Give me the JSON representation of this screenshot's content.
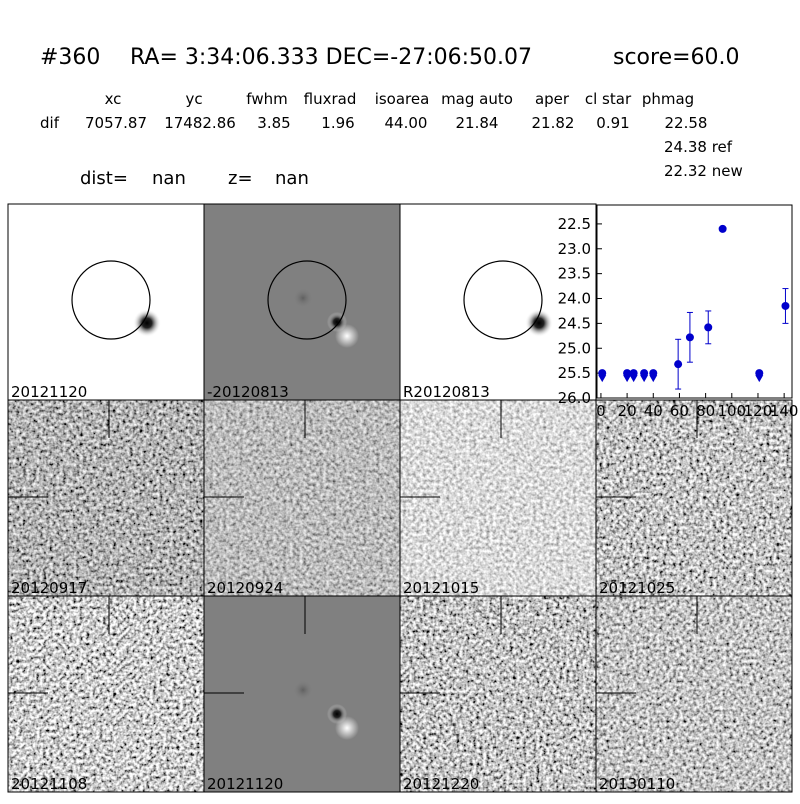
{
  "header": {
    "id": "#360",
    "coords": "RA= 3:34:06.333 DEC=-27:06:50.07",
    "score": "score=60.0"
  },
  "table": {
    "columns": [
      "xc",
      "yc",
      "fwhm",
      "fluxrad",
      "isoarea",
      "mag auto",
      "aper",
      "cl star",
      "phmag"
    ],
    "row_label": "dif",
    "row": [
      "7057.87",
      "17482.86",
      "3.85",
      "1.96",
      "44.00",
      "21.84",
      "21.82",
      "0.91",
      "22.58"
    ],
    "ref": "24.38 ref",
    "new": "22.32 new"
  },
  "dist": {
    "dist_label": "dist=",
    "dist_value": "nan",
    "z_label": "z=",
    "z_value": "nan"
  },
  "panels": [
    {
      "label": "20121120",
      "color": "#000000"
    },
    {
      "label": "-20120813",
      "color": "#000000"
    },
    {
      "label": "R20120813",
      "color": "#000000"
    },
    {
      "label": "20120917",
      "color": "#000000"
    },
    {
      "label": "20120924",
      "color": "#000000"
    },
    {
      "label": "20121015",
      "color": "#000000"
    },
    {
      "label": "20121025",
      "color": "#000000"
    },
    {
      "label": "20121108",
      "color": "#000000"
    },
    {
      "label": "20121120",
      "color": "#ff0000"
    },
    {
      "label": "20121220",
      "color": "#000000"
    },
    {
      "label": "20130110",
      "color": "#000000"
    }
  ],
  "chart_data": {
    "type": "scatter",
    "series": [
      {
        "color": "#0000cc",
        "marker": "circle",
        "x": [
          59,
          68,
          82,
          93,
          141
        ],
        "values": [
          25.32,
          24.78,
          24.58,
          22.6,
          24.15
        ],
        "errors": [
          0.5,
          0.5,
          0.33,
          0.03,
          0.35
        ]
      },
      {
        "color": "#0000cc",
        "marker": "limit",
        "x": [
          1,
          20,
          25,
          33,
          40,
          121
        ],
        "values": [
          25.5,
          25.5,
          25.5,
          25.5,
          25.5,
          25.5
        ]
      }
    ],
    "xlim": [
      -3,
      146
    ],
    "ylim": [
      26,
      22.12
    ],
    "xticks": [
      0,
      20,
      40,
      60,
      80,
      100,
      120,
      140
    ],
    "yticks": [
      22.5,
      {
        "value": 23,
        "label": "23.0"
      },
      23.5,
      {
        "value": 24,
        "label": "24.0"
      },
      24.5,
      {
        "value": 25,
        "label": "25.0"
      },
      25.5,
      {
        "value": 26,
        "label": "26.0"
      }
    ]
  }
}
